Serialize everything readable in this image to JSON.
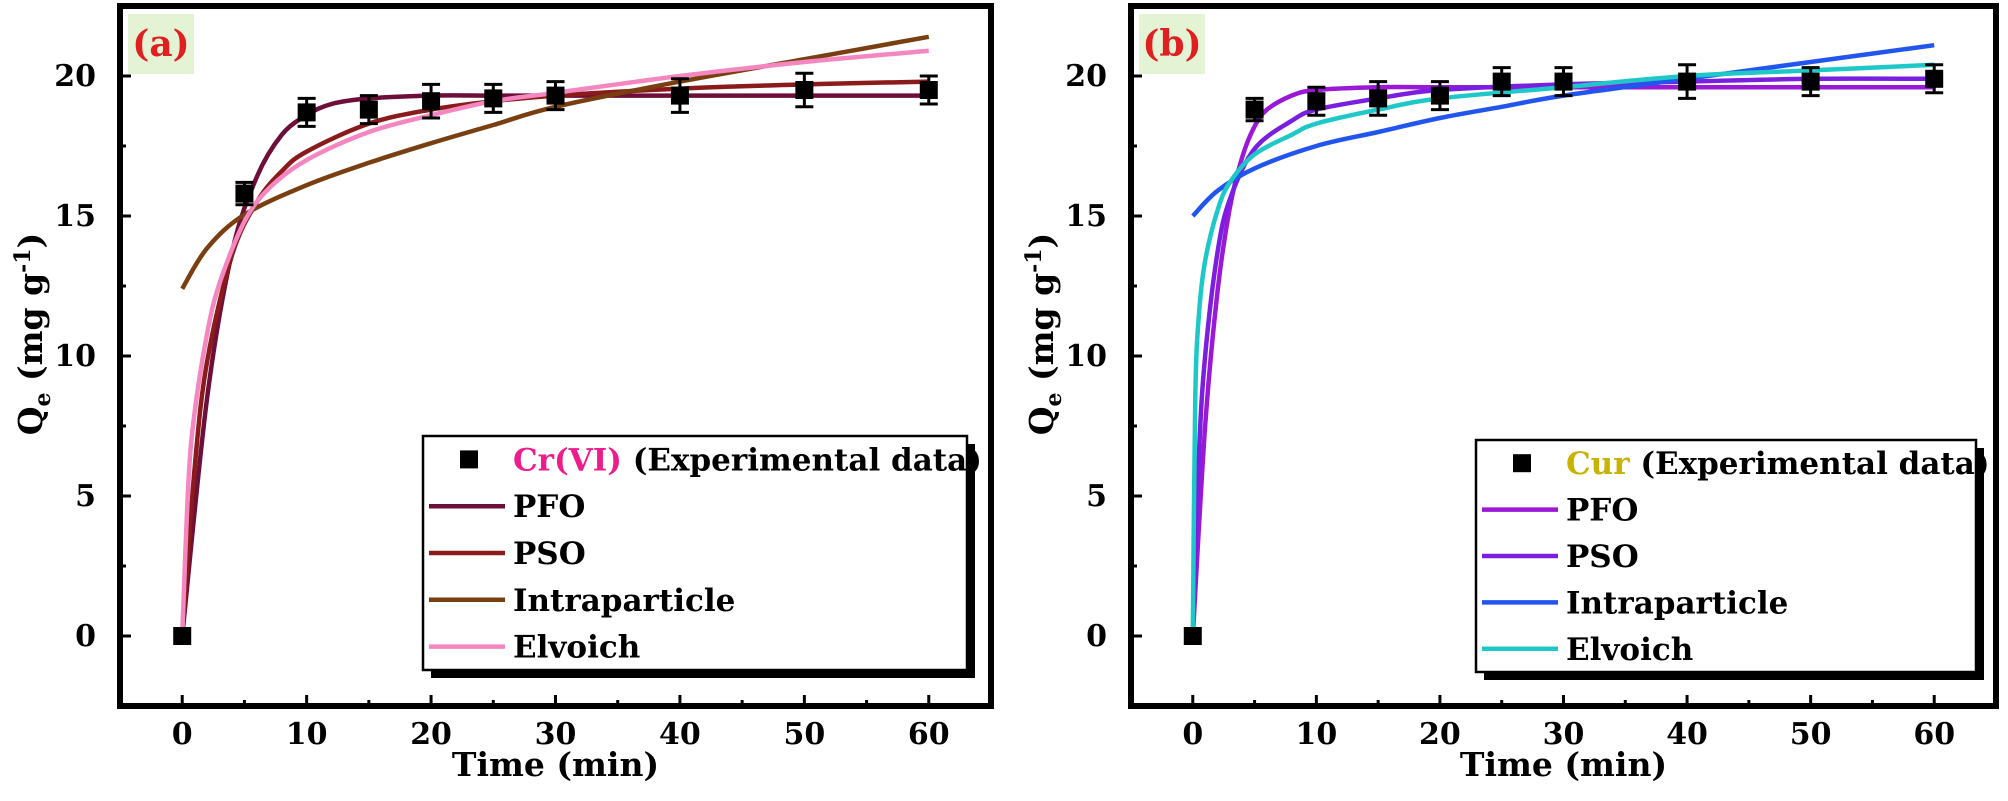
{
  "chart_data": [
    {
      "type": "line",
      "panel_label": "(a)",
      "xlabel": "Time (min)",
      "ylabel": "Q",
      "ylabel_subscript": "e",
      "ylabel_units_pre": "(mg g",
      "ylabel_units_sup": "-1",
      "ylabel_units_post": ")",
      "xlim": [
        -5,
        65
      ],
      "ylim": [
        -2.5,
        22.5
      ],
      "xticks": [
        0,
        10,
        20,
        30,
        40,
        50,
        60
      ],
      "yticks": [
        0,
        5,
        10,
        15,
        20
      ],
      "legend_position": "bottom-right",
      "experimental": {
        "legend_species": "Cr(VI)",
        "legend_species_color": "#ee1c8c",
        "legend_suffix": " (Experimental data)",
        "x": [
          0,
          5,
          10,
          15,
          20,
          25,
          30,
          40,
          50,
          60
        ],
        "y": [
          0,
          15.8,
          18.7,
          18.8,
          19.1,
          19.2,
          19.3,
          19.3,
          19.5,
          19.5
        ],
        "err": [
          0,
          0.4,
          0.5,
          0.5,
          0.6,
          0.5,
          0.5,
          0.6,
          0.6,
          0.5
        ]
      },
      "series": [
        {
          "name": "PFO",
          "color": "#6e0f3a",
          "x": [
            0,
            2,
            4,
            6,
            8,
            10,
            12,
            15,
            20,
            25,
            30,
            40,
            50,
            60
          ],
          "y": [
            0,
            8.5,
            13.7,
            16.4,
            17.9,
            18.6,
            19.0,
            19.2,
            19.3,
            19.3,
            19.3,
            19.3,
            19.3,
            19.3
          ]
        },
        {
          "name": "PSO",
          "color": "#8b1a1a",
          "x": [
            0,
            1,
            2,
            4,
            6,
            8,
            10,
            15,
            20,
            25,
            30,
            40,
            50,
            60
          ],
          "y": [
            0,
            6.0,
            9.8,
            13.6,
            15.5,
            16.6,
            17.3,
            18.3,
            18.8,
            19.1,
            19.3,
            19.55,
            19.7,
            19.8
          ]
        },
        {
          "name": "Intraparticle",
          "color": "#7a3f10",
          "x": [
            0,
            2,
            5,
            10,
            15,
            20,
            25,
            30,
            40,
            50,
            60
          ],
          "y": [
            12.4,
            13.85,
            15.05,
            16.1,
            16.9,
            17.6,
            18.25,
            18.9,
            19.8,
            20.6,
            21.4
          ]
        },
        {
          "name": "Elvoich",
          "color": "#f587c0",
          "x": [
            0,
            0.5,
            1,
            2,
            3,
            5,
            7,
            10,
            15,
            20,
            25,
            30,
            40,
            50,
            60
          ],
          "y": [
            0,
            5.5,
            8.0,
            10.8,
            12.6,
            14.8,
            16.0,
            17.0,
            18.0,
            18.6,
            19.1,
            19.4,
            20.0,
            20.5,
            20.9
          ]
        }
      ]
    },
    {
      "type": "line",
      "panel_label": "(b)",
      "xlabel": "Time (min)",
      "ylabel": "Q",
      "ylabel_subscript": "e",
      "ylabel_units_pre": "(mg g",
      "ylabel_units_sup": "-1",
      "ylabel_units_post": ")",
      "xlim": [
        -5,
        65
      ],
      "ylim": [
        -2.5,
        22.5
      ],
      "xticks": [
        0,
        10,
        20,
        30,
        40,
        50,
        60
      ],
      "yticks": [
        0,
        5,
        10,
        15,
        20
      ],
      "legend_position": "bottom-right",
      "experimental": {
        "legend_species": "Cur",
        "legend_species_color": "#c8b400",
        "legend_suffix": " (Experimental data)",
        "x": [
          0,
          5,
          10,
          15,
          20,
          25,
          30,
          40,
          50,
          60
        ],
        "y": [
          0,
          18.8,
          19.1,
          19.2,
          19.3,
          19.8,
          19.8,
          19.8,
          19.8,
          19.9
        ],
        "err": [
          0,
          0.4,
          0.5,
          0.6,
          0.5,
          0.5,
          0.5,
          0.6,
          0.5,
          0.5
        ]
      },
      "series": [
        {
          "name": "PFO",
          "color": "#9b19d6",
          "x": [
            0,
            1,
            2,
            3,
            4,
            5,
            6,
            8,
            10,
            15,
            20,
            30,
            40,
            50,
            60
          ],
          "y": [
            0,
            7.5,
            12.3,
            15.3,
            17.1,
            18.2,
            18.8,
            19.3,
            19.5,
            19.6,
            19.6,
            19.6,
            19.6,
            19.6,
            19.6
          ]
        },
        {
          "name": "PSO",
          "color": "#7a1fe0",
          "x": [
            0,
            0.5,
            1,
            2,
            3,
            5,
            8,
            10,
            15,
            20,
            30,
            40,
            50,
            60
          ],
          "y": [
            0,
            6.5,
            10.0,
            13.7,
            15.6,
            17.4,
            18.4,
            18.8,
            19.2,
            19.5,
            19.7,
            19.8,
            19.9,
            19.9
          ]
        },
        {
          "name": "Intraparticle",
          "color": "#2255ee",
          "x": [
            0,
            2,
            5,
            10,
            15,
            20,
            25,
            30,
            40,
            50,
            60
          ],
          "y": [
            15.0,
            15.9,
            16.7,
            17.5,
            18.0,
            18.5,
            18.9,
            19.3,
            19.9,
            20.5,
            21.1
          ]
        },
        {
          "name": "Elvoich",
          "color": "#1fc8c8",
          "x": [
            0,
            0.2,
            0.5,
            1,
            2,
            3,
            5,
            8,
            10,
            15,
            20,
            30,
            40,
            50,
            60
          ],
          "y": [
            0,
            8.5,
            11.5,
            13.4,
            15.2,
            16.2,
            17.2,
            17.9,
            18.3,
            18.8,
            19.2,
            19.6,
            20.0,
            20.2,
            20.4
          ]
        }
      ]
    }
  ]
}
